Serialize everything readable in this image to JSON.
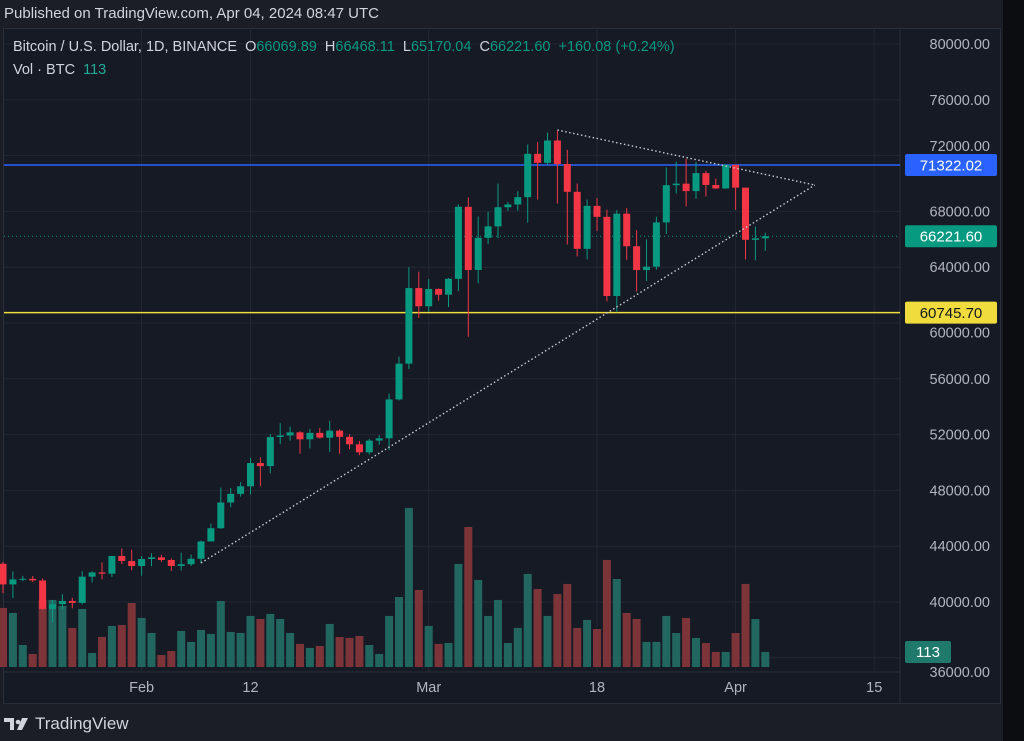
{
  "header": {
    "published": "Published on TradingView.com, Apr 04, 2024 08:47 UTC"
  },
  "legend": {
    "symbol": "Bitcoin / U.S. Dollar, 1D, BINANCE",
    "o_label": "O",
    "o": "66069.89",
    "h_label": "H",
    "h": "66468.11",
    "l_label": "L",
    "l": "65170.04",
    "c_label": "C",
    "c": "66221.60",
    "change": "+160.08 (+0.24%)",
    "vol_label": "Vol · BTC",
    "vol": "113"
  },
  "footer": {
    "brand": "TradingView",
    "logo_icon": "tradingview-logo-icon"
  },
  "colors": {
    "up": "#089981",
    "down": "#f23645",
    "vol_up": "#22675f",
    "vol_down": "#7c3439",
    "resistance": "#2962ff",
    "support": "#f0dc3c",
    "background": "#161a25",
    "grid": "#232733"
  },
  "chart_data": {
    "type": "candlestick",
    "title": "Bitcoin / U.S. Dollar, 1D, BINANCE",
    "ylim": [
      36000,
      80000
    ],
    "price_ticks": [
      "80000.00",
      "76000.00",
      "72000.00",
      "68000.00",
      "64000.00",
      "60000.00",
      "56000.00",
      "52000.00",
      "48000.00",
      "44000.00",
      "40000.00",
      "36000.00"
    ],
    "price_tick_values": [
      80000,
      76000,
      72000,
      68000,
      64000,
      60000,
      56000,
      52000,
      48000,
      44000,
      40000,
      36000
    ],
    "x_ticks": [
      {
        "label": "Feb",
        "date": "2024-02-01"
      },
      {
        "label": "12",
        "date": "2024-02-12"
      },
      {
        "label": "Mar",
        "date": "2024-03-01"
      },
      {
        "label": "18",
        "date": "2024-03-18"
      },
      {
        "label": "Apr",
        "date": "2024-04-01"
      },
      {
        "label": "15",
        "date": "2024-04-15"
      }
    ],
    "grid": true,
    "columns": [
      "date",
      "open",
      "high",
      "low",
      "close",
      "volume"
    ],
    "candles": [
      [
        "2024-01-18",
        42742,
        42876,
        40632,
        41262,
        443
      ],
      [
        "2024-01-19",
        41262,
        42195,
        40280,
        41618,
        405
      ],
      [
        "2024-01-20",
        41618,
        41875,
        41500,
        41665,
        165
      ],
      [
        "2024-01-21",
        41665,
        41870,
        41450,
        41545,
        98
      ],
      [
        "2024-01-22",
        41545,
        41689,
        39431,
        39507,
        503
      ],
      [
        "2024-01-23",
        39507,
        40130,
        38555,
        39845,
        503
      ],
      [
        "2024-01-24",
        39845,
        40555,
        39484,
        40077,
        458
      ],
      [
        "2024-01-25",
        40077,
        40300,
        39550,
        39934,
        293
      ],
      [
        "2024-01-26",
        39934,
        42210,
        39825,
        41816,
        435
      ],
      [
        "2024-01-27",
        41816,
        42200,
        41400,
        42120,
        105
      ],
      [
        "2024-01-28",
        42120,
        42842,
        41620,
        42031,
        225
      ],
      [
        "2024-01-29",
        42031,
        43305,
        41804,
        43300,
        308
      ],
      [
        "2024-01-30",
        43300,
        43838,
        42711,
        42941,
        315
      ],
      [
        "2024-01-31",
        42941,
        43745,
        42276,
        42580,
        480
      ],
      [
        "2024-02-01",
        42580,
        43285,
        41884,
        43082,
        368
      ],
      [
        "2024-02-02",
        43082,
        43494,
        42565,
        43200,
        255
      ],
      [
        "2024-02-03",
        43200,
        43380,
        42880,
        43011,
        90
      ],
      [
        "2024-02-04",
        43011,
        43119,
        42222,
        42582,
        120
      ],
      [
        "2024-02-05",
        42582,
        43530,
        42258,
        42708,
        270
      ],
      [
        "2024-02-06",
        42708,
        43399,
        42574,
        43098,
        188
      ],
      [
        "2024-02-07",
        43098,
        44396,
        42788,
        44339,
        278
      ],
      [
        "2024-02-08",
        44339,
        45614,
        44332,
        45288,
        248
      ],
      [
        "2024-02-09",
        45288,
        48200,
        45242,
        47132,
        495
      ],
      [
        "2024-02-10",
        47132,
        48170,
        46800,
        47751,
        263
      ],
      [
        "2024-02-11",
        47751,
        48592,
        47557,
        48293,
        255
      ],
      [
        "2024-02-12",
        48293,
        50334,
        47710,
        49958,
        383
      ],
      [
        "2024-02-13",
        49958,
        50369,
        48300,
        49742,
        360
      ],
      [
        "2024-02-14",
        49742,
        52043,
        49225,
        51826,
        398
      ],
      [
        "2024-02-15",
        51826,
        52816,
        51314,
        51938,
        360
      ],
      [
        "2024-02-16",
        51938,
        52574,
        51566,
        52160,
        255
      ],
      [
        "2024-02-17",
        52160,
        52250,
        50625,
        51663,
        173
      ],
      [
        "2024-02-18",
        51663,
        52400,
        51015,
        52122,
        143
      ],
      [
        "2024-02-19",
        52122,
        52485,
        51716,
        51779,
        158
      ],
      [
        "2024-02-20",
        51779,
        52985,
        50760,
        52284,
        323
      ],
      [
        "2024-02-21",
        52284,
        52370,
        50625,
        51839,
        225
      ],
      [
        "2024-02-22",
        51839,
        52030,
        50950,
        51304,
        218
      ],
      [
        "2024-02-23",
        51304,
        51548,
        50525,
        50731,
        233
      ],
      [
        "2024-02-24",
        50731,
        51700,
        50577,
        51571,
        165
      ],
      [
        "2024-02-25",
        51571,
        51958,
        51277,
        51733,
        98
      ],
      [
        "2024-02-26",
        51733,
        54938,
        50901,
        54522,
        383
      ],
      [
        "2024-02-27",
        54522,
        57588,
        54451,
        57085,
        525
      ],
      [
        "2024-02-28",
        57085,
        64000,
        56691,
        62504,
        1193
      ],
      [
        "2024-02-29",
        62504,
        63676,
        60364,
        61198,
        578
      ],
      [
        "2024-03-01",
        61198,
        63155,
        60802,
        62440,
        308
      ],
      [
        "2024-03-02",
        62440,
        62485,
        61600,
        62029,
        173
      ],
      [
        "2024-03-03",
        62029,
        63230,
        61150,
        63168,
        180
      ],
      [
        "2024-03-04",
        63168,
        68500,
        62300,
        68330,
        773
      ],
      [
        "2024-03-05",
        68330,
        69000,
        59005,
        63801,
        1050
      ],
      [
        "2024-03-06",
        63801,
        67637,
        62848,
        66106,
        653
      ],
      [
        "2024-03-07",
        66106,
        67980,
        65655,
        66925,
        383
      ],
      [
        "2024-03-08",
        66925,
        69990,
        66080,
        68300,
        503
      ],
      [
        "2024-03-09",
        68300,
        68670,
        68038,
        68498,
        180
      ],
      [
        "2024-03-10",
        68498,
        69450,
        68048,
        69020,
        293
      ],
      [
        "2024-03-11",
        69020,
        72800,
        67194,
        72125,
        698
      ],
      [
        "2024-03-12",
        72125,
        72969,
        68845,
        71481,
        585
      ],
      [
        "2024-03-13",
        71481,
        73650,
        71335,
        73083,
        383
      ],
      [
        "2024-03-14",
        73083,
        73777,
        68555,
        71396,
        548
      ],
      [
        "2024-03-15",
        71396,
        72420,
        65630,
        69403,
        623
      ],
      [
        "2024-03-16",
        69403,
        70000,
        64780,
        65315,
        293
      ],
      [
        "2024-03-17",
        65315,
        68845,
        64545,
        68393,
        353
      ],
      [
        "2024-03-18",
        68393,
        68957,
        66600,
        67609,
        285
      ],
      [
        "2024-03-19",
        67609,
        68124,
        61555,
        61937,
        803
      ],
      [
        "2024-03-20",
        61937,
        68100,
        60775,
        67840,
        660
      ],
      [
        "2024-03-21",
        67840,
        68240,
        64529,
        65501,
        405
      ],
      [
        "2024-03-22",
        65501,
        66650,
        62260,
        63796,
        360
      ],
      [
        "2024-03-23",
        63796,
        65999,
        63000,
        64037,
        188
      ],
      [
        "2024-03-24",
        64037,
        67622,
        63825,
        67211,
        188
      ],
      [
        "2024-03-25",
        67211,
        71150,
        66385,
        69880,
        383
      ],
      [
        "2024-03-26",
        69880,
        71561,
        69280,
        69988,
        255
      ],
      [
        "2024-03-27",
        69988,
        71769,
        68359,
        69455,
        368
      ],
      [
        "2024-03-28",
        69455,
        71552,
        68903,
        70744,
        218
      ],
      [
        "2024-03-29",
        70744,
        70913,
        69076,
        69893,
        180
      ],
      [
        "2024-03-30",
        69893,
        70355,
        69601,
        69645,
        113
      ],
      [
        "2024-03-31",
        69645,
        71377,
        69624,
        71333,
        113
      ],
      [
        "2024-04-01",
        71333,
        71342,
        68110,
        69702,
        255
      ],
      [
        "2024-04-02",
        69702,
        69708,
        64550,
        65963,
        623
      ],
      [
        "2024-04-03",
        65963,
        66915,
        64493,
        66070,
        360
      ],
      [
        "2024-04-04",
        66070,
        66468,
        65170,
        66222,
        113
      ]
    ],
    "horizontal_lines": [
      {
        "price": 71322.02,
        "label": "71322.02",
        "color": "#2962ff"
      },
      {
        "price": 60745.7,
        "label": "60745.70",
        "color": "#f0dc3c"
      }
    ],
    "last_price": {
      "price": 66221.6,
      "label": "66221.60"
    },
    "last_volume_label": "113",
    "trendlines": [
      {
        "style": "dotted",
        "points": [
          [
            "2024-03-14",
            73835
          ],
          [
            "2024-04-09",
            69890
          ]
        ]
      },
      {
        "style": "dotted",
        "points": [
          [
            "2024-02-07",
            42800
          ],
          [
            "2024-04-09",
            69890
          ]
        ]
      }
    ]
  }
}
